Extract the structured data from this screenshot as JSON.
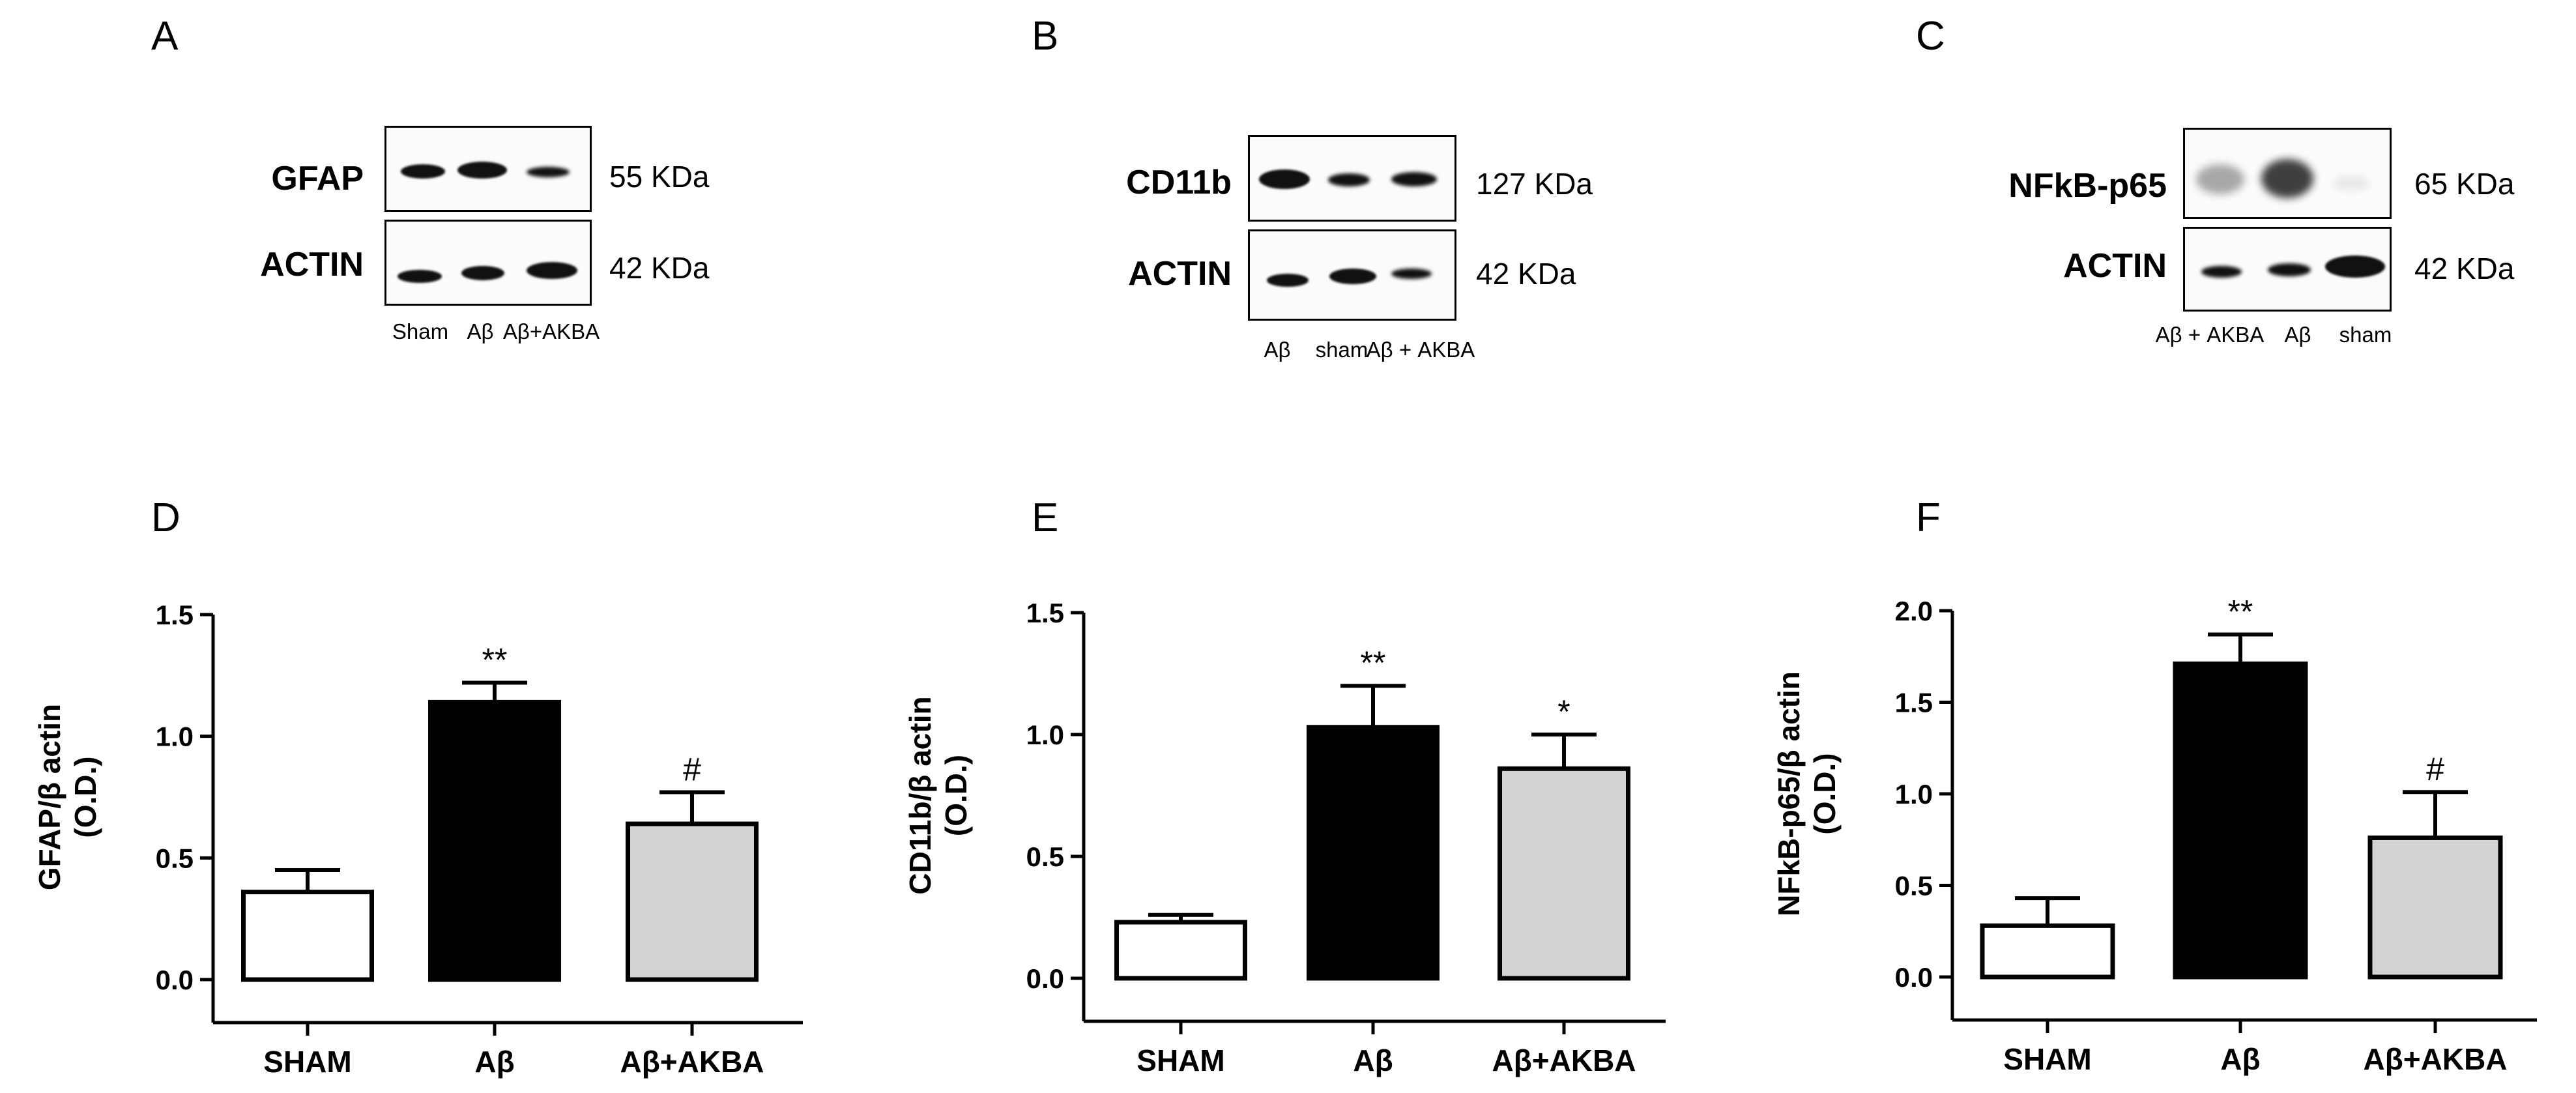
{
  "panels": {
    "A": {
      "letter": "A",
      "rows": [
        {
          "label": "GFAP",
          "kda": "55 KDa",
          "band_intensity": [
            0.75,
            0.95,
            0.45
          ]
        },
        {
          "label": "ACTIN",
          "kda": "42 KDa",
          "band_intensity": [
            0.85,
            0.9,
            0.95
          ]
        }
      ],
      "lanes": [
        "Sham",
        "Aβ",
        "Aβ+AKBA"
      ]
    },
    "B": {
      "letter": "B",
      "rows": [
        {
          "label": "CD11b",
          "kda": "127 KDa",
          "band_intensity": [
            0.95,
            0.6,
            0.7
          ]
        },
        {
          "label": "ACTIN",
          "kda": "42 KDa",
          "band_intensity": [
            0.85,
            0.9,
            0.6
          ]
        }
      ],
      "lanes": [
        "Aβ",
        "sham",
        "Aβ + AKBA"
      ]
    },
    "C": {
      "letter": "C",
      "rows": [
        {
          "label": "NFkB-p65",
          "kda": "65 KDa",
          "band_intensity": [
            0.35,
            0.75,
            0.08
          ]
        },
        {
          "label": "ACTIN",
          "kda": "42 KDa",
          "band_intensity": [
            0.75,
            0.8,
            0.98
          ]
        }
      ],
      "lanes": [
        "Aβ + AKBA",
        "Aβ",
        "sham"
      ]
    }
  },
  "chart_data": [
    {
      "panel": "D",
      "type": "bar",
      "ylabel_line1": "GFAP/β actin",
      "ylabel_line2": "(O.D.)",
      "categories": [
        "SHAM",
        "Aβ",
        "Aβ+AKBA"
      ],
      "values": [
        0.36,
        1.14,
        0.64
      ],
      "errors": [
        0.09,
        0.08,
        0.13
      ],
      "annotations": [
        "",
        "**",
        "#"
      ],
      "fill_colors": [
        "#ffffff",
        "#000000",
        "#d3d3d3"
      ],
      "ylim": [
        0,
        1.5
      ],
      "yticks": [
        0.0,
        0.5,
        1.0,
        1.5
      ],
      "ytick_labels": [
        "0.0",
        "0.5",
        "1.0",
        "1.5"
      ]
    },
    {
      "panel": "E",
      "type": "bar",
      "ylabel_line1": "CD11b/β actin",
      "ylabel_line2": "(O.D.)",
      "categories": [
        "SHAM",
        "Aβ",
        "Aβ+AKBA"
      ],
      "values": [
        0.23,
        1.03,
        0.86
      ],
      "errors": [
        0.03,
        0.17,
        0.14
      ],
      "annotations": [
        "",
        "**",
        "*"
      ],
      "fill_colors": [
        "#ffffff",
        "#000000",
        "#d3d3d3"
      ],
      "ylim": [
        0,
        1.5
      ],
      "yticks": [
        0.0,
        0.5,
        1.0,
        1.5
      ],
      "ytick_labels": [
        "0.0",
        "0.5",
        "1.0",
        "1.5"
      ]
    },
    {
      "panel": "F",
      "type": "bar",
      "ylabel_line1": "NFkB-p65/β actin",
      "ylabel_line2": "(O.D.)",
      "categories": [
        "SHAM",
        "Aβ",
        "Aβ+AKBA"
      ],
      "values": [
        0.28,
        1.71,
        0.76
      ],
      "errors": [
        0.15,
        0.16,
        0.25
      ],
      "annotations": [
        "",
        "**",
        "#"
      ],
      "fill_colors": [
        "#ffffff",
        "#000000",
        "#d3d3d3"
      ],
      "ylim": [
        0,
        2.0
      ],
      "yticks": [
        0.0,
        0.5,
        1.0,
        1.5,
        2.0
      ],
      "ytick_labels": [
        "0.0",
        "0.5",
        "1.0",
        "1.5",
        "2.0"
      ]
    }
  ]
}
